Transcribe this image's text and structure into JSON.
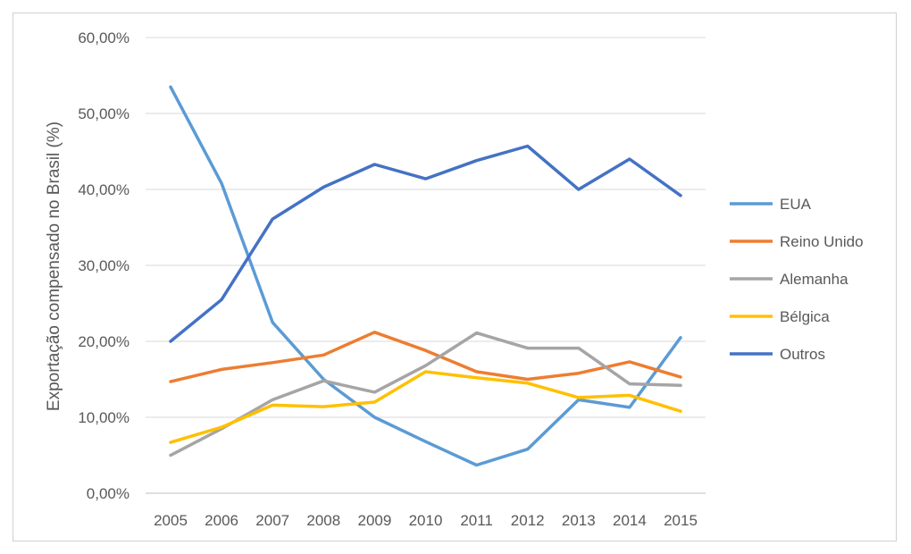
{
  "chart_data": {
    "type": "line",
    "title": "",
    "xlabel": "",
    "ylabel": "Exportação compensado no Brasil (%)",
    "x": [
      "2005",
      "2006",
      "2007",
      "2008",
      "2009",
      "2010",
      "2011",
      "2012",
      "2013",
      "2014",
      "2015"
    ],
    "ylim": [
      0,
      60
    ],
    "yticks": [
      0,
      10,
      20,
      30,
      40,
      50,
      60
    ],
    "ytick_labels": [
      "0,00%",
      "10,00%",
      "20,00%",
      "30,00%",
      "40,00%",
      "50,00%",
      "60,00%"
    ],
    "grid": true,
    "legend_position": "right",
    "series": [
      {
        "name": "EUA",
        "color": "#5b9bd5",
        "values": [
          53.5,
          40.8,
          22.5,
          15.0,
          10.0,
          6.8,
          3.7,
          5.8,
          12.3,
          11.3,
          20.5
        ]
      },
      {
        "name": "Reino Unido",
        "color": "#ed7d31",
        "values": [
          14.7,
          16.3,
          17.2,
          18.2,
          21.2,
          18.8,
          16.0,
          15.0,
          15.8,
          17.3,
          15.3
        ]
      },
      {
        "name": "Alemanha",
        "color": "#a5a5a5",
        "values": [
          5.0,
          8.5,
          12.3,
          14.8,
          13.3,
          16.8,
          21.1,
          19.1,
          19.1,
          14.4,
          14.2
        ]
      },
      {
        "name": "Bélgica",
        "color": "#ffc000",
        "values": [
          6.7,
          8.7,
          11.6,
          11.4,
          12.0,
          16.0,
          15.2,
          14.5,
          12.6,
          12.9,
          10.8
        ]
      },
      {
        "name": "Outros",
        "color": "#4472c4",
        "values": [
          20.0,
          25.5,
          36.1,
          40.3,
          43.3,
          41.4,
          43.8,
          45.7,
          40.0,
          44.0,
          39.2
        ]
      }
    ]
  }
}
